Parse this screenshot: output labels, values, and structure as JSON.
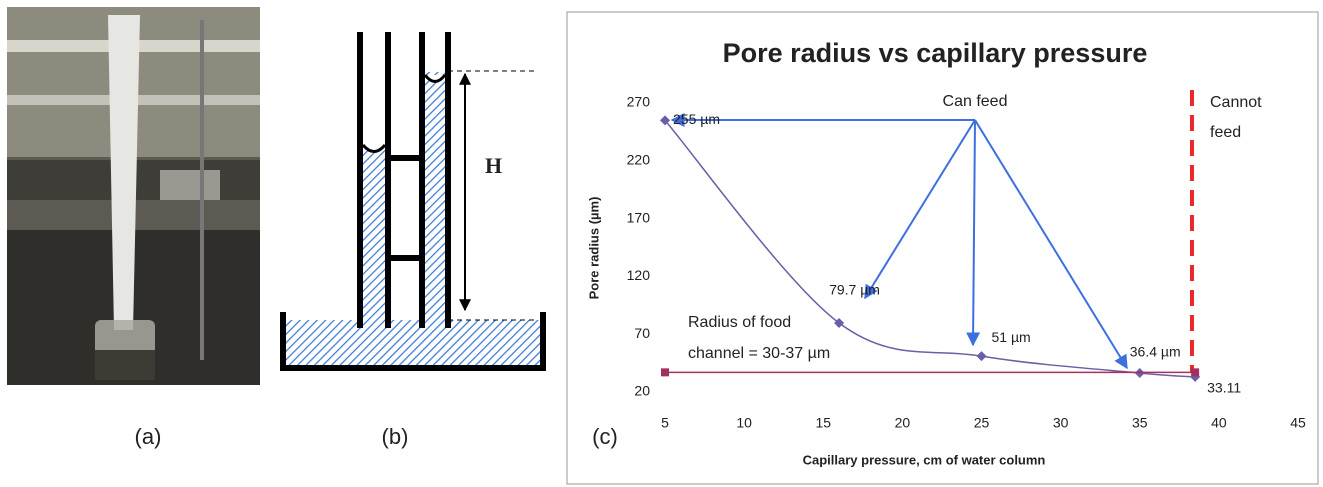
{
  "panel_labels": [
    "(a)",
    "(b)",
    "(c)"
  ],
  "diagram": {
    "label": "H"
  },
  "chart_data": {
    "type": "line",
    "title": "Pore radius vs capillary pressure",
    "xlabel": "Capillary pressure, cm of water column",
    "ylabel": "Pore radius (µm)",
    "xlim": [
      5,
      45
    ],
    "xticks": [
      5,
      10,
      15,
      20,
      25,
      30,
      35,
      40,
      45
    ],
    "ylim": [
      20,
      270
    ],
    "yticks": [
      20,
      70,
      120,
      170,
      220,
      270
    ],
    "grid": false,
    "series": [
      {
        "color": "#6a5ea6",
        "marker": "diamond",
        "smooth": true,
        "x": [
          5,
          16,
          25,
          35,
          38.5
        ],
        "values": [
          255,
          79.7,
          51,
          36.4,
          33.11
        ],
        "value_labels": [
          "255 µm",
          "79.7 µm",
          "51 µm",
          "36.4 µm",
          "33.11"
        ]
      },
      {
        "color": "#a3305e",
        "marker": "square",
        "smooth": false,
        "x": [
          5,
          38.5
        ],
        "values": [
          37,
          37
        ]
      }
    ],
    "vline": {
      "x": 38.3,
      "color": "#e8282b"
    },
    "annotations": {
      "can_feed": "Can feed",
      "cannot_feed": [
        "Cannot",
        "feed"
      ],
      "channel": [
        "Radius of food",
        "channel = 30-37 µm"
      ]
    }
  }
}
